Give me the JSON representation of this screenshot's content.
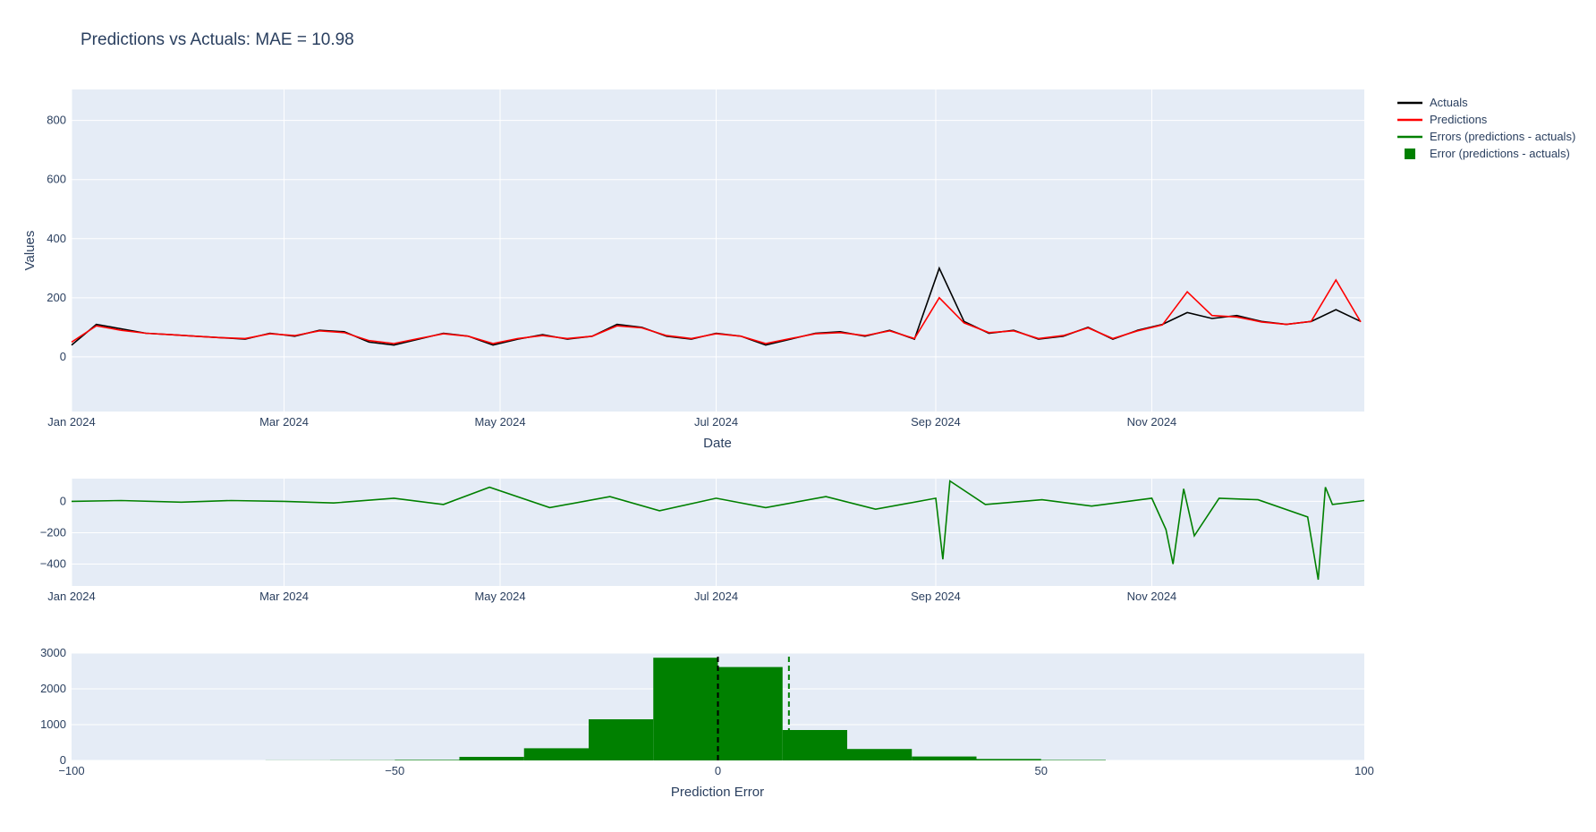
{
  "chart_data": {
    "title": "Predictions vs Actuals: MAE = 10.98",
    "legend": {
      "placement": "top-right",
      "entries": [
        {
          "label": "Actuals",
          "symbol": "line",
          "color": "#000000"
        },
        {
          "label": "Predictions",
          "symbol": "line",
          "color": "#ff0000"
        },
        {
          "label": "Errors (predictions - actuals)",
          "symbol": "line",
          "color": "#008000"
        },
        {
          "label": "Error (predictions - actuals)",
          "symbol": "square",
          "color": "#008000"
        }
      ]
    },
    "colors": {
      "plot_bg": "#e5ecf6",
      "grid": "#ffffff",
      "text": "#2a3f5f",
      "actuals": "#000000",
      "predictions": "#ff0000",
      "errors": "#008000"
    },
    "panels": [
      {
        "type": "line",
        "name": "timeseries",
        "xlabel": "Date",
        "ylabel": "Values",
        "xlim": [
          "2024-01-01",
          "2024-12-31"
        ],
        "ylim": [
          -185,
          905
        ],
        "yticks": [
          0,
          200,
          400,
          600,
          800
        ],
        "ytick_labels": [
          "0",
          "200",
          "400",
          "600",
          "800"
        ],
        "xticks": [
          "2024-01-01",
          "2024-03-01",
          "2024-05-01",
          "2024-07-01",
          "2024-09-01",
          "2024-11-01"
        ],
        "xtick_labels": [
          "Jan 2024",
          "Mar 2024",
          "May 2024",
          "Jul 2024",
          "Sep 2024",
          "Nov 2024"
        ],
        "grid": true,
        "series": [
          {
            "name": "Actuals",
            "color": "#000000",
            "x": [
              "2024-01-01",
              "2024-01-08",
              "2024-01-15",
              "2024-01-22",
              "2024-01-29",
              "2024-02-05",
              "2024-02-12",
              "2024-02-19",
              "2024-02-26",
              "2024-03-04",
              "2024-03-11",
              "2024-03-18",
              "2024-03-25",
              "2024-04-01",
              "2024-04-08",
              "2024-04-15",
              "2024-04-22",
              "2024-04-29",
              "2024-05-06",
              "2024-05-13",
              "2024-05-20",
              "2024-05-27",
              "2024-06-03",
              "2024-06-10",
              "2024-06-17",
              "2024-06-24",
              "2024-07-01",
              "2024-07-08",
              "2024-07-15",
              "2024-07-22",
              "2024-07-29",
              "2024-08-05",
              "2024-08-12",
              "2024-08-19",
              "2024-08-26",
              "2024-09-02",
              "2024-09-09",
              "2024-09-16",
              "2024-09-23",
              "2024-09-30",
              "2024-10-07",
              "2024-10-14",
              "2024-10-21",
              "2024-10-28",
              "2024-11-04",
              "2024-11-11",
              "2024-11-18",
              "2024-11-25",
              "2024-12-02",
              "2024-12-09",
              "2024-12-16",
              "2024-12-23",
              "2024-12-30"
            ],
            "y": [
              40,
              110,
              95,
              80,
              75,
              70,
              65,
              60,
              80,
              70,
              90,
              85,
              50,
              40,
              60,
              80,
              70,
              40,
              60,
              75,
              60,
              70,
              110,
              100,
              70,
              60,
              80,
              70,
              40,
              60,
              80,
              85,
              70,
              90,
              60,
              300,
              120,
              80,
              90,
              60,
              70,
              100,
              60,
              90,
              110,
              150,
              130,
              140,
              120,
              110,
              120,
              160,
              120
            ]
          },
          {
            "name": "Predictions",
            "color": "#ff0000",
            "x": [
              "2024-01-01",
              "2024-01-08",
              "2024-01-15",
              "2024-01-22",
              "2024-01-29",
              "2024-02-05",
              "2024-02-12",
              "2024-02-19",
              "2024-02-26",
              "2024-03-04",
              "2024-03-11",
              "2024-03-18",
              "2024-03-25",
              "2024-04-01",
              "2024-04-08",
              "2024-04-15",
              "2024-04-22",
              "2024-04-29",
              "2024-05-06",
              "2024-05-13",
              "2024-05-20",
              "2024-05-27",
              "2024-06-03",
              "2024-06-10",
              "2024-06-17",
              "2024-06-24",
              "2024-07-01",
              "2024-07-08",
              "2024-07-15",
              "2024-07-22",
              "2024-07-29",
              "2024-08-05",
              "2024-08-12",
              "2024-08-19",
              "2024-08-26",
              "2024-09-02",
              "2024-09-09",
              "2024-09-16",
              "2024-09-23",
              "2024-09-30",
              "2024-10-07",
              "2024-10-14",
              "2024-10-21",
              "2024-10-28",
              "2024-11-04",
              "2024-11-11",
              "2024-11-18",
              "2024-11-25",
              "2024-12-02",
              "2024-12-09",
              "2024-12-16",
              "2024-12-23",
              "2024-12-30"
            ],
            "y": [
              50,
              105,
              90,
              80,
              75,
              70,
              65,
              62,
              78,
              72,
              88,
              82,
              55,
              45,
              62,
              78,
              70,
              45,
              62,
              72,
              62,
              70,
              105,
              98,
              72,
              62,
              78,
              70,
              45,
              62,
              78,
              82,
              72,
              88,
              62,
              200,
              115,
              82,
              88,
              62,
              72,
              98,
              62,
              88,
              108,
              220,
              140,
              135,
              118,
              110,
              120,
              260,
              118
            ]
          },
          {
            "name": "Errors (predictions - actuals)",
            "color": "#008000",
            "panel": "errors",
            "x": [
              "2024-01-01",
              "2024-01-15",
              "2024-02-01",
              "2024-02-15",
              "2024-03-01",
              "2024-03-15",
              "2024-04-01",
              "2024-04-15",
              "2024-04-28",
              "2024-05-15",
              "2024-06-01",
              "2024-06-15",
              "2024-07-01",
              "2024-07-15",
              "2024-08-01",
              "2024-08-15",
              "2024-09-01",
              "2024-09-03",
              "2024-09-05",
              "2024-09-15",
              "2024-10-01",
              "2024-10-15",
              "2024-11-01",
              "2024-11-05",
              "2024-11-07",
              "2024-11-10",
              "2024-11-13",
              "2024-11-20",
              "2024-12-01",
              "2024-12-15",
              "2024-12-18",
              "2024-12-20",
              "2024-12-22",
              "2024-12-31"
            ],
            "y": [
              0,
              5,
              -5,
              5,
              0,
              -10,
              20,
              -20,
              90,
              -40,
              30,
              -60,
              20,
              -40,
              30,
              -50,
              20,
              -370,
              130,
              -20,
              10,
              -30,
              20,
              -180,
              -400,
              80,
              -220,
              20,
              10,
              -100,
              -500,
              90,
              -20,
              5
            ]
          }
        ]
      },
      {
        "type": "line",
        "name": "errors",
        "xlim": [
          "2024-01-01",
          "2024-12-31"
        ],
        "ylim": [
          -540,
          145
        ],
        "yticks": [
          -400,
          -200,
          0
        ],
        "ytick_labels": [
          "−400",
          "−200",
          "0"
        ],
        "xticks": [
          "2024-01-01",
          "2024-03-01",
          "2024-05-01",
          "2024-07-01",
          "2024-09-01",
          "2024-11-01"
        ],
        "xtick_labels": [
          "Jan 2024",
          "Mar 2024",
          "May 2024",
          "Jul 2024",
          "Sep 2024",
          "Nov 2024"
        ],
        "grid": true
      },
      {
        "type": "bar",
        "name": "histogram",
        "xlabel": "Prediction Error",
        "xlim": [
          -100,
          100
        ],
        "ylim": [
          0,
          3000
        ],
        "yticks": [
          0,
          1000,
          2000,
          3000
        ],
        "ytick_labels": [
          "0",
          "1000",
          "2000",
          "3000"
        ],
        "xticks": [
          -100,
          -50,
          0,
          50,
          100
        ],
        "xtick_labels": [
          "−100",
          "−50",
          "0",
          "50",
          "100"
        ],
        "bins": [
          {
            "x0": -70,
            "x1": -60,
            "count": 3
          },
          {
            "x0": -60,
            "x1": -50,
            "count": 6
          },
          {
            "x0": -50,
            "x1": -40,
            "count": 15
          },
          {
            "x0": -40,
            "x1": -30,
            "count": 100
          },
          {
            "x0": -30,
            "x1": -20,
            "count": 340
          },
          {
            "x0": -20,
            "x1": -10,
            "count": 1150
          },
          {
            "x0": -10,
            "x1": 0,
            "count": 2870
          },
          {
            "x0": 0,
            "x1": 10,
            "count": 2610
          },
          {
            "x0": 10,
            "x1": 20,
            "count": 850
          },
          {
            "x0": 20,
            "x1": 30,
            "count": 320
          },
          {
            "x0": 30,
            "x1": 40,
            "count": 110
          },
          {
            "x0": 40,
            "x1": 50,
            "count": 40
          },
          {
            "x0": 50,
            "x1": 60,
            "count": 12
          }
        ],
        "vlines": [
          {
            "x": 0,
            "color": "#000000",
            "style": "dashed"
          },
          {
            "x": 10.98,
            "color": "#008000",
            "style": "dashed"
          }
        ]
      }
    ]
  }
}
